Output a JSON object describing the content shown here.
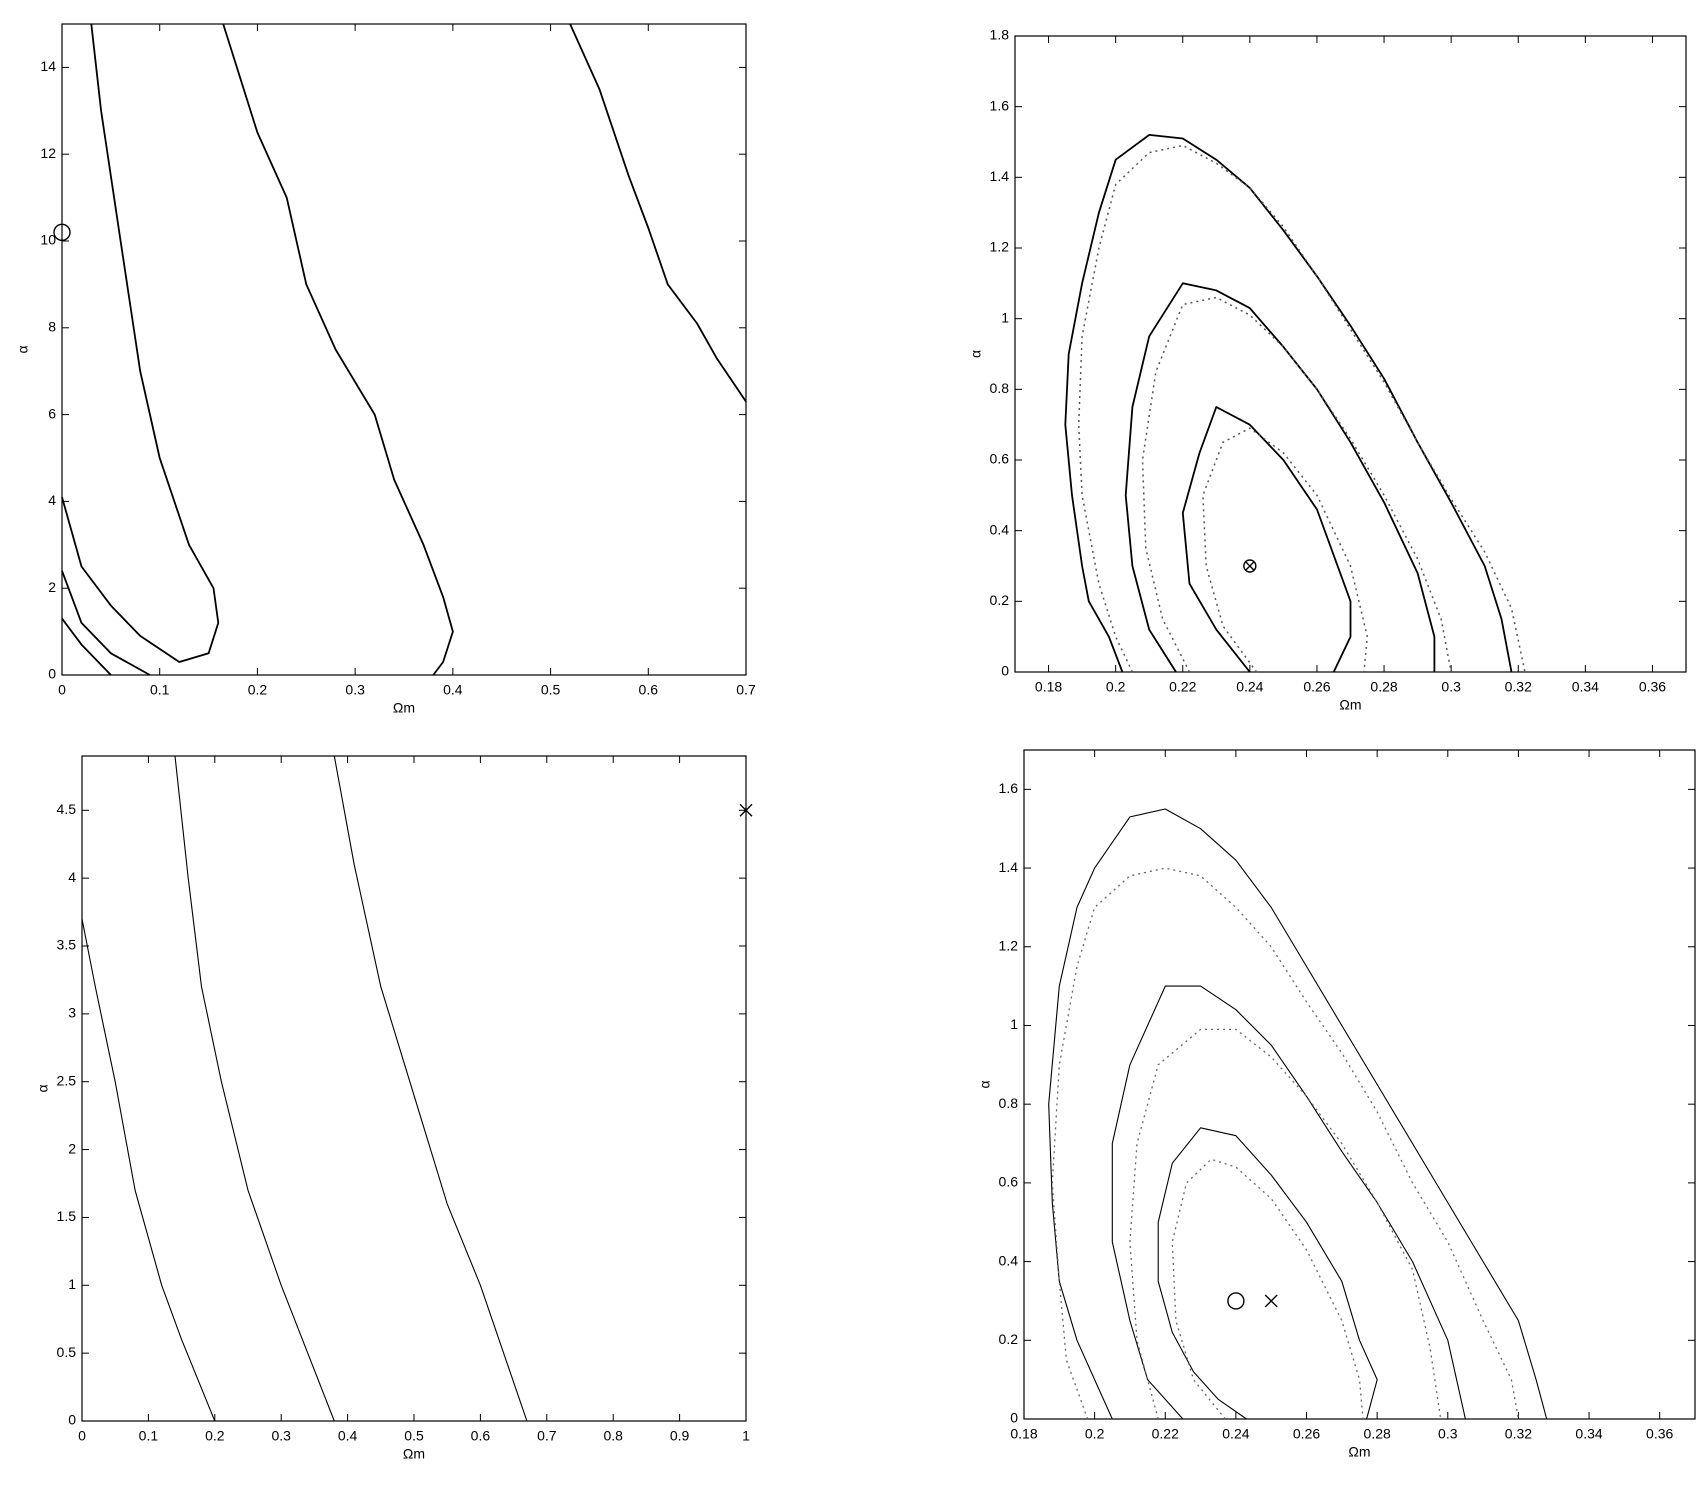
{
  "chart_data": [
    {
      "type": "line",
      "x_label": "Ωm",
      "y_label": "α",
      "xlim": [
        0,
        0.7
      ],
      "ylim": [
        0,
        15
      ],
      "xticks": [
        0,
        0.1,
        0.2,
        0.3,
        0.4,
        0.5,
        0.6,
        0.7
      ],
      "yticks": [
        0,
        2,
        4,
        6,
        8,
        10,
        12,
        14
      ],
      "series": [
        {
          "color": "#000",
          "style": "solid",
          "width": 1.8,
          "x": [
            0,
            0.02,
            0.05
          ],
          "values": [
            1.3,
            0.7,
            0
          ]
        },
        {
          "color": "#000",
          "style": "solid",
          "width": 1.8,
          "x": [
            0,
            0.02,
            0.05,
            0.09
          ],
          "values": [
            2.4,
            1.2,
            0.5,
            0
          ]
        },
        {
          "color": "#000",
          "style": "solid",
          "width": 1.8,
          "x": [
            0,
            0.02,
            0.05,
            0.08,
            0.12,
            0.15,
            0.16,
            0.155,
            0.13,
            0.1,
            0.08,
            0.06,
            0.04,
            0.03
          ],
          "values": [
            4.1,
            2.5,
            1.6,
            0.9,
            0.3,
            0.5,
            1.2,
            2,
            3,
            5,
            7,
            10,
            13,
            15
          ]
        },
        {
          "color": "#000",
          "style": "solid",
          "width": 1.8,
          "x": [
            0.165,
            0.2,
            0.23,
            0.25,
            0.28,
            0.32,
            0.34,
            0.37,
            0.39,
            0.4,
            0.39,
            0.38
          ],
          "values": [
            15,
            12.5,
            11,
            9,
            7.5,
            6,
            4.5,
            3,
            1.8,
            1,
            0.3,
            0
          ]
        },
        {
          "color": "#000",
          "style": "solid",
          "width": 1.8,
          "x": [
            0.52,
            0.55,
            0.58,
            0.6,
            0.62,
            0.65,
            0.67,
            0.7
          ],
          "values": [
            15,
            13.5,
            11.5,
            10.3,
            9,
            8.1,
            7.3,
            6.3
          ]
        }
      ],
      "markers": [
        {
          "symbol": "circle",
          "x": 0,
          "y": 10.2
        }
      ]
    },
    {
      "type": "line",
      "x_label": "Ωm",
      "y_label": "α",
      "xlim": [
        0.17,
        0.37
      ],
      "ylim": [
        0,
        1.8
      ],
      "xticks": [
        0.18,
        0.2,
        0.22,
        0.24,
        0.26,
        0.28,
        0.3,
        0.32,
        0.34,
        0.36
      ],
      "yticks": [
        0,
        0.2,
        0.4,
        0.6,
        0.8,
        1,
        1.2,
        1.4,
        1.6,
        1.8
      ],
      "series": [
        {
          "color": "#000",
          "style": "solid",
          "width": 1.8,
          "x": [
            0.202,
            0.198,
            0.192,
            0.19,
            0.187,
            0.185,
            0.186,
            0.19,
            0.195,
            0.2,
            0.21,
            0.22,
            0.23,
            0.24,
            0.25,
            0.26,
            0.27,
            0.28,
            0.29,
            0.3,
            0.31,
            0.315,
            0.318
          ],
          "values": [
            0,
            0.1,
            0.2,
            0.3,
            0.5,
            0.7,
            0.9,
            1.1,
            1.3,
            1.45,
            1.52,
            1.51,
            1.45,
            1.37,
            1.25,
            1.12,
            0.98,
            0.83,
            0.65,
            0.48,
            0.3,
            0.15,
            0
          ]
        },
        {
          "color": "#555",
          "style": "dotted",
          "width": 1.5,
          "x": [
            0.205,
            0.2,
            0.195,
            0.19,
            0.189,
            0.19,
            0.195,
            0.2,
            0.21,
            0.22,
            0.23,
            0.24,
            0.25,
            0.26,
            0.27,
            0.28,
            0.29,
            0.3,
            0.31,
            0.318,
            0.322
          ],
          "values": [
            0,
            0.1,
            0.25,
            0.5,
            0.7,
            0.95,
            1.2,
            1.38,
            1.47,
            1.49,
            1.44,
            1.37,
            1.26,
            1.12,
            0.97,
            0.82,
            0.65,
            0.49,
            0.34,
            0.18,
            0
          ]
        },
        {
          "color": "#000",
          "style": "solid",
          "width": 1.8,
          "x": [
            0.218,
            0.21,
            0.205,
            0.203,
            0.205,
            0.21,
            0.22,
            0.23,
            0.24,
            0.25,
            0.26,
            0.27,
            0.28,
            0.29,
            0.295,
            0.295
          ],
          "values": [
            0,
            0.12,
            0.3,
            0.5,
            0.75,
            0.95,
            1.1,
            1.08,
            1.03,
            0.92,
            0.8,
            0.65,
            0.48,
            0.28,
            0.1,
            0
          ]
        },
        {
          "color": "#555",
          "style": "dotted",
          "width": 1.5,
          "x": [
            0.222,
            0.214,
            0.209,
            0.208,
            0.212,
            0.22,
            0.23,
            0.24,
            0.25,
            0.26,
            0.27,
            0.28,
            0.29,
            0.297,
            0.3
          ],
          "values": [
            0,
            0.15,
            0.35,
            0.6,
            0.85,
            1.04,
            1.06,
            1.01,
            0.92,
            0.8,
            0.66,
            0.5,
            0.32,
            0.15,
            0
          ]
        },
        {
          "color": "#000",
          "style": "solid",
          "width": 1.8,
          "x": [
            0.24,
            0.23,
            0.222,
            0.22,
            0.225,
            0.23,
            0.24,
            0.25,
            0.26,
            0.27,
            0.27,
            0.265
          ],
          "values": [
            0,
            0.12,
            0.25,
            0.45,
            0.62,
            0.75,
            0.7,
            0.6,
            0.46,
            0.2,
            0.1,
            0
          ]
        },
        {
          "color": "#555",
          "style": "dotted",
          "width": 1.5,
          "x": [
            0.242,
            0.232,
            0.227,
            0.226,
            0.232,
            0.24,
            0.25,
            0.26,
            0.27,
            0.275,
            0.274
          ],
          "values": [
            0,
            0.13,
            0.3,
            0.5,
            0.65,
            0.69,
            0.62,
            0.5,
            0.3,
            0.1,
            0
          ]
        }
      ],
      "markers": [
        {
          "symbol": "otimes",
          "x": 0.24,
          "y": 0.3
        }
      ]
    },
    {
      "type": "line",
      "x_label": "Ωm",
      "y_label": "α",
      "xlim": [
        0,
        1
      ],
      "ylim": [
        0,
        4.9
      ],
      "xticks": [
        0,
        0.1,
        0.2,
        0.3,
        0.4,
        0.5,
        0.6,
        0.7,
        0.8,
        0.9,
        1
      ],
      "yticks": [
        0,
        0.5,
        1,
        1.5,
        2,
        2.5,
        3,
        3.5,
        4,
        4.5
      ],
      "series": [
        {
          "color": "#000",
          "style": "solid",
          "width": 1.1,
          "x": [
            0,
            0.02,
            0.05,
            0.08,
            0.12,
            0.15,
            0.2
          ],
          "values": [
            3.7,
            3.2,
            2.5,
            1.7,
            1,
            0.6,
            0
          ]
        },
        {
          "color": "#000",
          "style": "solid",
          "width": 1.1,
          "x": [
            0.14,
            0.16,
            0.18,
            0.21,
            0.25,
            0.3,
            0.38
          ],
          "values": [
            4.9,
            4,
            3.2,
            2.5,
            1.7,
            1,
            0
          ]
        },
        {
          "color": "#000",
          "style": "solid",
          "width": 1.1,
          "x": [
            0.38,
            0.41,
            0.45,
            0.5,
            0.55,
            0.6,
            0.67
          ],
          "values": [
            4.9,
            4.1,
            3.2,
            2.4,
            1.6,
            1,
            0
          ]
        }
      ],
      "markers": [
        {
          "symbol": "cross",
          "x": 1,
          "y": 4.5
        }
      ]
    },
    {
      "type": "line",
      "x_label": "Ωm",
      "y_label": "α",
      "xlim": [
        0.18,
        0.37
      ],
      "ylim": [
        0,
        1.7
      ],
      "xticks": [
        0.18,
        0.2,
        0.22,
        0.24,
        0.26,
        0.28,
        0.3,
        0.32,
        0.34,
        0.36
      ],
      "yticks": [
        0,
        0.2,
        0.4,
        0.6,
        0.8,
        1,
        1.2,
        1.4,
        1.6
      ],
      "series": [
        {
          "color": "#000",
          "style": "solid",
          "width": 1.1,
          "x": [
            0.205,
            0.2,
            0.195,
            0.19,
            0.188,
            0.187,
            0.19,
            0.195,
            0.2,
            0.21,
            0.22,
            0.23,
            0.24,
            0.25,
            0.26,
            0.27,
            0.28,
            0.29,
            0.3,
            0.31,
            0.32,
            0.325,
            0.328
          ],
          "values": [
            0,
            0.1,
            0.2,
            0.35,
            0.55,
            0.8,
            1.1,
            1.3,
            1.4,
            1.53,
            1.55,
            1.5,
            1.42,
            1.3,
            1.15,
            1,
            0.85,
            0.7,
            0.55,
            0.4,
            0.25,
            0.1,
            0
          ]
        },
        {
          "color": "#666",
          "style": "dotted",
          "width": 1.3,
          "x": [
            0.198,
            0.192,
            0.19,
            0.188,
            0.19,
            0.195,
            0.2,
            0.21,
            0.22,
            0.23,
            0.24,
            0.25,
            0.26,
            0.27,
            0.28,
            0.29,
            0.3,
            0.31,
            0.318,
            0.32
          ],
          "values": [
            0,
            0.15,
            0.35,
            0.6,
            0.9,
            1.15,
            1.3,
            1.38,
            1.4,
            1.38,
            1.3,
            1.2,
            1.06,
            0.93,
            0.78,
            0.6,
            0.45,
            0.25,
            0.1,
            0
          ]
        },
        {
          "color": "#000",
          "style": "solid",
          "width": 1.1,
          "x": [
            0.225,
            0.215,
            0.21,
            0.205,
            0.205,
            0.21,
            0.22,
            0.23,
            0.24,
            0.25,
            0.26,
            0.27,
            0.28,
            0.29,
            0.3,
            0.305
          ],
          "values": [
            0,
            0.1,
            0.25,
            0.45,
            0.7,
            0.9,
            1.1,
            1.1,
            1.04,
            0.95,
            0.82,
            0.68,
            0.55,
            0.4,
            0.2,
            0
          ]
        },
        {
          "color": "#666",
          "style": "dotted",
          "width": 1.3,
          "x": [
            0.218,
            0.212,
            0.21,
            0.212,
            0.218,
            0.23,
            0.24,
            0.25,
            0.26,
            0.27,
            0.28,
            0.29,
            0.295,
            0.298
          ],
          "values": [
            0,
            0.2,
            0.45,
            0.7,
            0.9,
            0.99,
            0.99,
            0.92,
            0.82,
            0.7,
            0.55,
            0.38,
            0.18,
            0
          ]
        },
        {
          "color": "#000",
          "style": "solid",
          "width": 1.1,
          "x": [
            0.243,
            0.235,
            0.228,
            0.222,
            0.218,
            0.218,
            0.222,
            0.23,
            0.24,
            0.25,
            0.26,
            0.27,
            0.275,
            0.28,
            0.277
          ],
          "values": [
            0,
            0.05,
            0.12,
            0.22,
            0.35,
            0.5,
            0.65,
            0.74,
            0.72,
            0.62,
            0.5,
            0.35,
            0.2,
            0.1,
            0
          ]
        },
        {
          "color": "#666",
          "style": "dotted",
          "width": 1.3,
          "x": [
            0.237,
            0.228,
            0.223,
            0.222,
            0.226,
            0.233,
            0.24,
            0.25,
            0.26,
            0.27,
            0.275,
            0.276
          ],
          "values": [
            0,
            0.1,
            0.25,
            0.45,
            0.6,
            0.66,
            0.64,
            0.56,
            0.43,
            0.25,
            0.1,
            0
          ]
        }
      ],
      "markers": [
        {
          "symbol": "circle",
          "x": 0.24,
          "y": 0.3
        },
        {
          "symbol": "cross",
          "x": 0.25,
          "y": 0.3
        }
      ]
    }
  ]
}
